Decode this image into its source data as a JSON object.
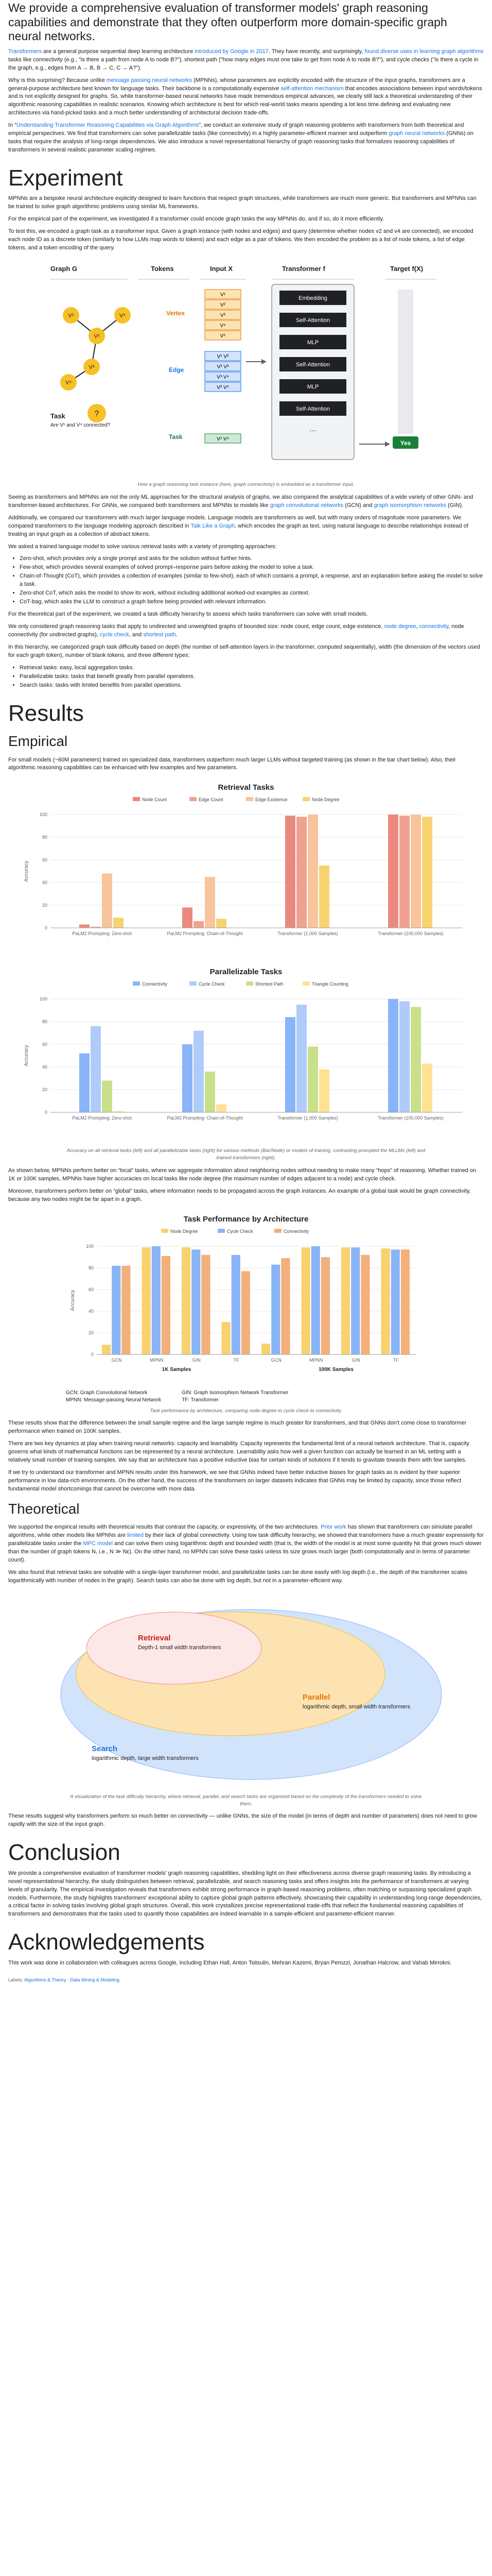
{
  "lead": "We provide a comprehensive evaluation of transformer models' graph reasoning capabilities and demonstrate that they often outperform more domain-specific graph neural networks.",
  "intro": {
    "p1_a": "Transformers",
    "p1_b": " are a general purpose sequential deep learning architecture ",
    "p1_c": "introduced by Google in 2017",
    "p1_d": ". They have recently, and surprisingly, ",
    "p1_e": "found diverse uses in learning graph algorithms",
    "p1_f": " tasks like connectivity (e.g., \"is there a path from node A to node B?\"), shortest path (\"how many edges must one take to get from node A to node B?\"), and cycle checks (\"is there a cycle in the graph, e.g., edges from A → B, B → C, C → A?\").",
    "p2_a": "Why is this surprising? Because unlike ",
    "p2_b": "message passing neural networks",
    "p2_c": " (MPNNs), whose parameters are explicitly encoded with the structure of the input graphs, transformers are a general-purpose architecture best known for language tasks. Their backbone is a computationally expensive ",
    "p2_d": "self-attention mechanism",
    "p2_e": " that encodes associations between input words/tokens and is not explicitly designed for graphs. So, while transformer-based neural networks have made tremendous empirical advances, we clearly still lack a theoretical understanding of their algorithmic reasoning capabilities in realistic scenarios. Knowing which architecture is best for which real-world tasks means spending a lot less time defining and evaluating new architectures via hand-picked tasks and a much better understanding of architectural decision trade-offs.",
    "p3_a": "In “",
    "p3_b": "Understanding Transformer Reasoning Capabilities via Graph Algorithms",
    "p3_c": "”, we conduct an extensive study of graph reasoning problems with transformers from both theoretical and empirical perspectives. We find that transformers can solve parallelizable tasks (like connectivity) in a highly parameter-efficient manner and outperform ",
    "p3_d": "graph neural networks",
    "p3_e": " (GNNs) on tasks that require the analysis of long-range dependencies. We also introduce a novel representational hierarchy of graph reasoning tasks that formalizes reasoning capabilities of transformers in several realistic parameter scaling regimes."
  },
  "experiment": {
    "heading": "Experiment",
    "p1": "MPNNs are a bespoke neural architecture explicitly designed to learn functions that respect graph structures, while transformers are much more generic. But transformers and MPNNs can be trained to solve graph algorithmic problems using similar ML frameworks.",
    "p2": "For the empirical part of the experiment, we investigated if a transformer could encode graph tasks the way MPNNs do, and if so, do it more efficiently.",
    "p3": "To test this, we encoded a graph task as a transformer input. Given a graph instance (with nodes and edges) and query (determine whether nodes v2 and v4 are connected), we encoded each node ID as a discrete token (similarly to how LLMs map words to tokens) and each edge as a pair of tokens. We then encoded the problem as a list of node tokens, a list of edge tokens, and a token encoding of the query.",
    "p4_a": "Seeing as transformers and MPNNs are not the only ML approaches for the structural analysis of graphs, we also compared the analytical capabilities of a wide variety of other GNN- and transformer-based architectures. For GNNs, we compared both transformers and MPNNs to models like ",
    "p4_b": "graph convolutional networks",
    "p4_c": " (GCN) and ",
    "p4_d": "graph isomorphism networks",
    "p4_e": " (GIN).",
    "p5_a": "Additionally, we compared our transformers with much larger language models. Language models are transformers as well, but with many orders of magnitude more parameters. We compared transformers to the language modeling approach described in ",
    "p5_b": "Talk Like a Graph",
    "p5_c": ", which encodes the graph as text, using natural language to describe relationships instead of treating an input graph as a collection of abstract tokens.",
    "p6": "We asked a trained language model to solve various retrieval tasks with a variety of prompting approaches:",
    "bullets": [
      "Zero-shot, which provides only a single prompt and asks for the solution without further hints.",
      "Few-shot, which provides several examples of solved prompt–response pairs before asking the model to solve a task.",
      "Chain-of-Thought (CoT), which provides a collection of examples (similar to few-shot), each of which contains a prompt, a response, and an explanation before asking the model to solve a task.",
      "Zero-shot CoT, which asks the model to show its work, without including additional worked-out examples as context.",
      "CoT-bag, which asks the LLM to construct a graph before being provided with relevant information."
    ],
    "p7": "For the theoretical part of the experiment, we created a task difficulty hierarchy to assess which tasks transformers can solve with small models.",
    "p8_a": "We only considered graph reasoning tasks that apply to undirected and unweighted graphs of bounded size: node count, edge count, edge existence, ",
    "p8_b": "node degree",
    "p8_c": ", ",
    "p8_d": "connectivity",
    "p8_e": ", node connectivity (for undirected graphs), ",
    "p8_f": "cycle check",
    "p8_g": ", and ",
    "p8_h": "shortest path",
    "p8_i": ".",
    "p9": "In this hierarchy, we categorized graph task difficulty based on depth (the number of self-attention layers in the transformer, computed sequentially), width (the dimension of the vectors used for each graph token), number of blank tokens, and three different types:",
    "bullets2": [
      "Retrieval tasks: easy, local aggregation tasks.",
      "Parallelizable tasks: tasks that benefit greatly from parallel operations.",
      "Search tasks: tasks with limited benefits from parallel operations."
    ]
  },
  "diagram": {
    "graph_label": "Graph G",
    "tokens_label": "Tokens",
    "input_label": "Input X",
    "transformer_label": "Transformer f",
    "target_label": "Target f(X)",
    "vertex_label": "Vertex",
    "edge_label": "Edge",
    "task_label": "Task",
    "task_question": "Are V¹ and V⁴ connected?",
    "task_token": "Task",
    "blocks": [
      "Embedding",
      "Self-Attention",
      "MLP",
      "Self-Attention",
      "MLP",
      "Self-Attention",
      "…"
    ],
    "answer": "Yes",
    "tokens_vertex": [
      "V¹",
      "V²",
      "V³",
      "V⁴",
      "V⁵"
    ],
    "tokens_edge": [
      "V¹ V²",
      "V² V³",
      "V³ V⁴",
      "V² V⁵"
    ],
    "task_tokens": "V¹ V⁴",
    "nodes": [
      "V¹",
      "V²",
      "V³",
      "V⁴",
      "V⁵"
    ],
    "caption": "How a graph reasoning task instance (here, graph connectivity) is embedded as a transformer input."
  },
  "results": {
    "heading": "Results",
    "empirical_heading": "Empirical",
    "p1": "For small models (~60M parameters) trained on specialized data, transformers outperform much larger LLMs without targeted training (as shown in the bar chart below). Also, their algorithmic reasoning capabilities can be enhanced with few examples and few parameters.",
    "p2": "As shown below, MPNNs perform better on “local” tasks, where we aggregate information about neighboring nodes without needing to make many “hops” of reasoning. Whether trained on 1K or 100K samples, MPNNs have higher accuracies on local tasks like node degree (the maximum number of edges adjacent to a node) and cycle check.",
    "p3": "Moreover, transformers perform better on “global” tasks, where information needs to be propagated across the graph instances. An example of a global task would be graph connectivity, because any two nodes might be far apart in a graph.",
    "p4": "These results show that the difference between the small sample regime and the large sample regime is much greater for transformers, and that GNNs don't come close to transformer performance when trained on 100K samples.",
    "p5": "There are two key dynamics at play when training neural networks: capacity and learnability. Capacity represents the fundamental limit of a neural network architecture. That is, capacity governs what kinds of mathematical functions can be represented by a neural architecture. Learnability asks how well a given function can actually be learned in an ML setting with a relatively small number of training samples. We say that an architecture has a positive inductive bias for certain kinds of solutions if it tends to gravitate towards them with few samples.",
    "p6": "If we try to understand our transformer and MPNN results under this framework, we see that GNNs indeed have better inductive biases for graph tasks as is evident by their superior performance in low data-rich environments. On the other hand, the success of the transformers on larger datasets indicates that GNNs may be limited by capacity, since those reflect fundamental model shortcomings that cannot be overcome with more data.",
    "theoretical_heading": "Theoretical",
    "p7_a": "We supported the empirical results with theoretical results that contrast the capacity, or expressivity, of the two architectures. ",
    "p7_b": "Prior work",
    "p7_c": " has shown that transformers can simulate parallel algorithms, while other models like MPNNs are ",
    "p7_d": "limited",
    "p7_e": " by their lack of global connectivity. Using low task difficulty hierarchy, we showed that transformers have a much greater expressivity for parallelizable tasks under the ",
    "p7_f": "MPC model",
    "p7_g": " and can solve them using logarithmic depth and bounded width (that is, the width of the model is at most some quantity Nε that grows much slower than the number of graph tokens N, i.e., N ≫ Nε). On the other hand, no MPNN can solve these tasks unless its size grows much larger (both computationally and in terms of parameter count).",
    "p8": "We also found that retrieval tasks are solvable with a single-layer transformer model, and parallelizable tasks can be done easily with log depth (i.e., the depth of the transformer scales logarithmically with number of nodes in the graph). Search tasks can also be done with log depth, but not in a parameter-efficient way.",
    "p9": "These results suggest why transformers perform so much better on connectivity — unlike GNNs, the size of the model (in terms of depth and number of parameters) does not need to grow rapidly with the size of the input graph."
  },
  "retrieval_chart": {
    "caption": "Accuracy on all retrieval tasks (left) and all parallelizable tasks (right) for various methods (Bar/Node) or models of training, contrasting prompted the MLLMs (left) and trained transformers (right)."
  },
  "chart_data": [
    {
      "type": "bar",
      "title": "Retrieval Tasks",
      "ylabel": "Accuracy",
      "ylim": [
        0,
        100
      ],
      "legend": "top",
      "grid": true,
      "groups": [
        "PaLM2 Prompting: Zero-shot",
        "PaLM2 Prompting: Chain-of-Thought",
        "Transformer (1,000 Samples)",
        "Transformer (100,000 Samples)"
      ],
      "series": [
        {
          "name": "Node Count",
          "color": "#ea8a7e",
          "values": [
            3,
            18,
            99,
            100
          ]
        },
        {
          "name": "Edge Count",
          "color": "#f0a291",
          "values": [
            1,
            6,
            98,
            99
          ]
        },
        {
          "name": "Edge Existence",
          "color": "#f7c49c",
          "values": [
            48,
            45,
            100,
            100
          ]
        },
        {
          "name": "Node Degree",
          "color": "#f7d26f",
          "values": [
            9,
            8,
            55,
            98
          ]
        }
      ]
    },
    {
      "type": "bar",
      "title": "Parallelizable Tasks",
      "ylabel": "Accuracy",
      "ylim": [
        0,
        100
      ],
      "legend": "top",
      "grid": true,
      "groups": [
        "PaLM2 Prompting: Zero-shot",
        "PaLM2 Prompting: Chain-of-Thought",
        "Transformer (1,000 Samples)",
        "Transformer (100,000 Samples)"
      ],
      "series": [
        {
          "name": "Connectivity",
          "color": "#8ab4f8",
          "values": [
            52,
            60,
            84,
            100
          ]
        },
        {
          "name": "Cycle Check",
          "color": "#aecbfa",
          "values": [
            76,
            72,
            95,
            98
          ]
        },
        {
          "name": "Shortest Path",
          "color": "#c9e08a",
          "values": [
            28,
            36,
            58,
            93
          ]
        },
        {
          "name": "Triangle Counting",
          "color": "#fde293",
          "values": [
            1,
            7,
            38,
            43
          ]
        }
      ]
    },
    {
      "type": "bar",
      "title": "Task Performance by Architecture",
      "ylabel": "Accuracy",
      "ylim": [
        0,
        100
      ],
      "legend": "top",
      "grid": true,
      "groups": [
        "GCN",
        "MPNN",
        "GIN",
        "TF",
        "GCN",
        "MPNN",
        "GIN",
        "TF"
      ],
      "sample_labels": [
        "1K Samples",
        "100K Samples"
      ],
      "series": [
        {
          "name": "Node Degree",
          "color": "#f7d26f",
          "values": [
            9,
            99,
            99,
            30,
            10,
            99,
            99,
            98
          ]
        },
        {
          "name": "Cycle Check",
          "color": "#8ab4f8",
          "values": [
            82,
            100,
            97,
            92,
            83,
            100,
            99,
            97
          ]
        },
        {
          "name": "Connectivity",
          "color": "#f3b07a",
          "values": [
            82,
            91,
            92,
            77,
            89,
            90,
            92,
            97
          ]
        }
      ]
    }
  ],
  "arch_legend": {
    "gcn": "GCN: Graph Convolutional Network",
    "mpnn": "MPNN: Message-passing Neural Network",
    "gin": "GIN: Graph Isomorphism Network Transformer",
    "tf": "TF: Transformer"
  },
  "arch_caption": "Task performance by architecture, comparing node degree to cycle check to connectivity.",
  "hierarchy": {
    "search_title": "Search",
    "search_sub": "logarithmic depth, large width transformers",
    "parallel_title": "Parallel",
    "parallel_sub": "logarithmic depth, small width transformers",
    "retrieval_title": "Retrieval",
    "retrieval_sub": "Depth-1 small width transformers",
    "caption": "A visualization of the task difficulty hierarchy, where retrieval, parallel, and search tasks are organized based on the complexity of the transformers needed to solve them."
  },
  "conclusion": {
    "heading": "Conclusion",
    "p1": "We provide a comprehensive evaluation of transformer models' graph reasoning capabilities, shedding light on their effectiveness across diverse graph reasoning tasks. By introducing a novel representational hierarchy, the study distinguishes between retrieval, parallelizable, and search reasoning tasks and offers insights into the performance of transformers at varying levels of granularity. The empirical investigation reveals that transformers exhibit strong performance in graph-based reasoning problems, often matching or surpassing specialized graph models. Furthermore, the study highlights transformers' exceptional ability to capture global graph patterns effectively, showcasing their capability in understanding long-range dependencies, a critical factor in solving tasks involving global graph structures. Overall, this work crystallizes precise representational trade-offs that reflect the fundamental reasoning capabilities of transformers and demonstrates that the tasks used to quantify those capabilities are indeed learnable in a sample-efficient and parameter-efficient manner."
  },
  "ack": {
    "heading": "Acknowledgements",
    "p1": "This work was done in collaboration with colleagues across Google, including Ethan Hall, Anton Tsitsulin, Mehran Kazemi, Bryan Perozzi, Jonathan Halcrow, and Vahab Mirrokni."
  },
  "footer": {
    "prefix": "Labels: ",
    "l1": "Algorithms & Theory",
    "sep": " · ",
    "l2": "Data Mining & Modeling"
  }
}
